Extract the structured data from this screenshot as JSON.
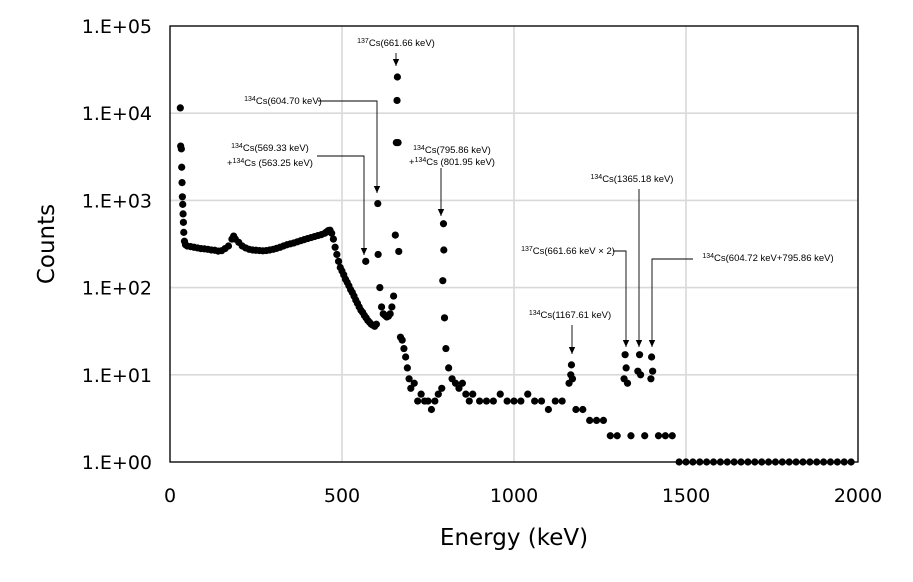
{
  "chart_data": {
    "type": "scatter",
    "title": "",
    "xlabel": "Energy (keV)",
    "ylabel": "Counts",
    "xlim": [
      0,
      2000
    ],
    "ylim": [
      1,
      100000
    ],
    "yscale": "log",
    "grid": true,
    "marker_color": "#000000",
    "x_ticks": [
      {
        "value": 0,
        "label": "0"
      },
      {
        "value": 500,
        "label": "500"
      },
      {
        "value": 1000,
        "label": "1000"
      },
      {
        "value": 1500,
        "label": "1500"
      },
      {
        "value": 2000,
        "label": "2000"
      }
    ],
    "y_ticks": [
      {
        "value": 1,
        "label": "1.E+00"
      },
      {
        "value": 10,
        "label": "1.E+01"
      },
      {
        "value": 100,
        "label": "1.E+02"
      },
      {
        "value": 1000,
        "label": "1.E+03"
      },
      {
        "value": 10000,
        "label": "1.E+04"
      },
      {
        "value": 100000,
        "label": "1.E+05"
      }
    ],
    "annotations": [
      {
        "sup": "137",
        "text": "Cs(661.66 keV)",
        "x": 661.66,
        "y": 26000
      },
      {
        "sup": "134",
        "text": "Cs(604.70 keV)",
        "x": 604.7,
        "y": 900
      },
      {
        "sup": "134",
        "text": "Cs(569.33 keV)",
        "sup2": "134",
        "text2_pre": "+",
        "text2": "Cs (563.25 keV)",
        "x": 569.33,
        "y": 180
      },
      {
        "sup": "134",
        "text": "Cs(795.86 keV)",
        "sup2": "134",
        "text2_pre": "+",
        "text2": "Cs (801.95 keV)",
        "x": 795.86,
        "y": 520
      },
      {
        "sup": "134",
        "text": "Cs(1365.18 keV)",
        "x": 1365.18,
        "y": 17
      },
      {
        "sup": "137",
        "text": "Cs(661.66 keV × 2)",
        "x": 1323.32,
        "y": 17
      },
      {
        "sup": "134",
        "text": "Cs(604.72 keV+795.86 keV)",
        "x": 1400.56,
        "y": 16
      },
      {
        "sup": "134",
        "text": "Cs(1167.61 keV)",
        "x": 1167.61,
        "y": 13
      }
    ],
    "series": [
      {
        "points": [
          [
            30,
            11500
          ],
          [
            31,
            4200
          ],
          [
            33,
            3900
          ],
          [
            34,
            2400
          ],
          [
            35,
            1600
          ],
          [
            36,
            1100
          ],
          [
            37,
            900
          ],
          [
            38,
            700
          ],
          [
            39,
            560
          ],
          [
            40,
            430
          ],
          [
            42,
            340
          ],
          [
            45,
            310
          ],
          [
            50,
            300
          ],
          [
            60,
            295
          ],
          [
            70,
            290
          ],
          [
            80,
            285
          ],
          [
            90,
            280
          ],
          [
            100,
            278
          ],
          [
            110,
            275
          ],
          [
            120,
            270
          ],
          [
            130,
            268
          ],
          [
            140,
            262
          ],
          [
            150,
            265
          ],
          [
            160,
            280
          ],
          [
            170,
            300
          ],
          [
            180,
            360
          ],
          [
            185,
            390
          ],
          [
            190,
            360
          ],
          [
            200,
            330
          ],
          [
            210,
            300
          ],
          [
            220,
            285
          ],
          [
            230,
            275
          ],
          [
            240,
            270
          ],
          [
            250,
            268
          ],
          [
            260,
            266
          ],
          [
            270,
            264
          ],
          [
            280,
            266
          ],
          [
            290,
            270
          ],
          [
            300,
            275
          ],
          [
            310,
            282
          ],
          [
            320,
            290
          ],
          [
            330,
            300
          ],
          [
            340,
            310
          ],
          [
            350,
            318
          ],
          [
            360,
            325
          ],
          [
            370,
            335
          ],
          [
            380,
            345
          ],
          [
            390,
            355
          ],
          [
            400,
            365
          ],
          [
            410,
            375
          ],
          [
            420,
            385
          ],
          [
            430,
            395
          ],
          [
            440,
            405
          ],
          [
            450,
            420
          ],
          [
            455,
            435
          ],
          [
            460,
            450
          ],
          [
            465,
            455
          ],
          [
            470,
            420
          ],
          [
            475,
            360
          ],
          [
            480,
            290
          ],
          [
            485,
            240
          ],
          [
            490,
            200
          ],
          [
            495,
            170
          ],
          [
            500,
            155
          ],
          [
            505,
            140
          ],
          [
            510,
            125
          ],
          [
            515,
            115
          ],
          [
            520,
            105
          ],
          [
            525,
            95
          ],
          [
            530,
            88
          ],
          [
            535,
            80
          ],
          [
            540,
            72
          ],
          [
            545,
            66
          ],
          [
            550,
            60
          ],
          [
            555,
            55
          ],
          [
            560,
            52
          ],
          [
            565,
            48
          ],
          [
            569,
            200
          ],
          [
            570,
            45
          ],
          [
            575,
            42
          ],
          [
            580,
            40
          ],
          [
            585,
            38
          ],
          [
            590,
            37
          ],
          [
            595,
            36
          ],
          [
            600,
            38
          ],
          [
            604,
            920
          ],
          [
            605,
            240
          ],
          [
            610,
            100
          ],
          [
            615,
            60
          ],
          [
            620,
            50
          ],
          [
            625,
            48
          ],
          [
            630,
            46
          ],
          [
            635,
            47
          ],
          [
            640,
            50
          ],
          [
            645,
            60
          ],
          [
            650,
            80
          ],
          [
            655,
            400
          ],
          [
            658,
            4600
          ],
          [
            660,
            14000
          ],
          [
            661,
            26000
          ],
          [
            663,
            4600
          ],
          [
            665,
            260
          ],
          [
            670,
            27
          ],
          [
            675,
            25
          ],
          [
            680,
            20
          ],
          [
            685,
            16
          ],
          [
            690,
            12
          ],
          [
            695,
            9
          ],
          [
            700,
            7
          ],
          [
            710,
            8
          ],
          [
            720,
            5
          ],
          [
            730,
            6
          ],
          [
            740,
            5
          ],
          [
            750,
            5
          ],
          [
            760,
            4
          ],
          [
            770,
            5
          ],
          [
            780,
            6
          ],
          [
            790,
            7
          ],
          [
            793,
            120
          ],
          [
            795,
            540
          ],
          [
            796,
            270
          ],
          [
            798,
            45
          ],
          [
            802,
            20
          ],
          [
            810,
            12
          ],
          [
            820,
            9
          ],
          [
            830,
            8
          ],
          [
            840,
            7
          ],
          [
            850,
            8
          ],
          [
            860,
            6
          ],
          [
            870,
            5
          ],
          [
            880,
            6
          ],
          [
            900,
            5
          ],
          [
            920,
            5
          ],
          [
            940,
            5
          ],
          [
            960,
            6
          ],
          [
            980,
            5
          ],
          [
            1000,
            5
          ],
          [
            1020,
            5
          ],
          [
            1040,
            6
          ],
          [
            1060,
            5
          ],
          [
            1080,
            5
          ],
          [
            1100,
            4
          ],
          [
            1120,
            5
          ],
          [
            1140,
            5
          ],
          [
            1160,
            8
          ],
          [
            1165,
            10
          ],
          [
            1167,
            13
          ],
          [
            1170,
            9
          ],
          [
            1180,
            4
          ],
          [
            1200,
            4
          ],
          [
            1220,
            3
          ],
          [
            1240,
            3
          ],
          [
            1260,
            3
          ],
          [
            1280,
            2
          ],
          [
            1300,
            2
          ],
          [
            1320,
            9
          ],
          [
            1323,
            17
          ],
          [
            1326,
            12
          ],
          [
            1330,
            8
          ],
          [
            1340,
            2
          ],
          [
            1360,
            11
          ],
          [
            1365,
            17
          ],
          [
            1368,
            10
          ],
          [
            1380,
            2
          ],
          [
            1398,
            9
          ],
          [
            1400,
            16
          ],
          [
            1403,
            11
          ],
          [
            1420,
            2
          ],
          [
            1440,
            2
          ],
          [
            1460,
            2
          ],
          [
            1480,
            1
          ],
          [
            1500,
            1
          ],
          [
            1520,
            1
          ],
          [
            1540,
            1
          ],
          [
            1560,
            1
          ],
          [
            1580,
            1
          ],
          [
            1600,
            1
          ],
          [
            1620,
            1
          ],
          [
            1640,
            1
          ],
          [
            1660,
            1
          ],
          [
            1680,
            1
          ],
          [
            1700,
            1
          ],
          [
            1720,
            1
          ],
          [
            1740,
            1
          ],
          [
            1760,
            1
          ],
          [
            1780,
            1
          ],
          [
            1800,
            1
          ],
          [
            1820,
            1
          ],
          [
            1840,
            1
          ],
          [
            1860,
            1
          ],
          [
            1880,
            1
          ],
          [
            1900,
            1
          ],
          [
            1920,
            1
          ],
          [
            1940,
            1
          ],
          [
            1960,
            1
          ],
          [
            1980,
            1
          ]
        ]
      }
    ]
  }
}
